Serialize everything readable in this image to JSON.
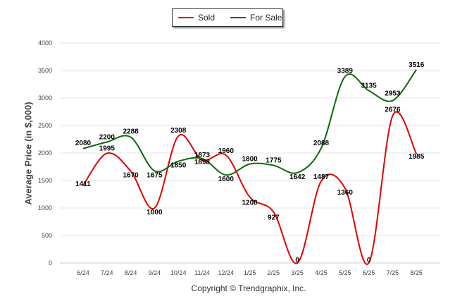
{
  "chart_data": {
    "type": "line",
    "categories": [
      "6/24",
      "7/24",
      "8/24",
      "9/24",
      "10/24",
      "11/24",
      "12/24",
      "1/25",
      "2/25",
      "3/25",
      "4/25",
      "5/25",
      "6/25",
      "7/25",
      "8/25"
    ],
    "series": [
      {
        "name": "Sold",
        "color": "#e00000",
        "values": [
          1411,
          1995,
          1670,
          1000,
          2308,
          1873,
          1960,
          1200,
          927,
          0,
          1487,
          1360,
          0,
          2676,
          1985
        ]
      },
      {
        "name": "For Sale",
        "color": "#0a6a0a",
        "values": [
          2080,
          2200,
          2288,
          1675,
          1850,
          1898,
          1600,
          1800,
          1775,
          1642,
          2088,
          3389,
          3135,
          2953,
          3516
        ]
      }
    ],
    "ylabel": "Average Price (in $,000)",
    "ylim": [
      0,
      4000
    ],
    "yticks": [
      0,
      500,
      1000,
      1500,
      2000,
      2500,
      3000,
      3500,
      4000
    ],
    "grid": true,
    "legend_placement": "top-center"
  },
  "footer": {
    "copyright": "Copyright © Trendgraphix, Inc."
  }
}
